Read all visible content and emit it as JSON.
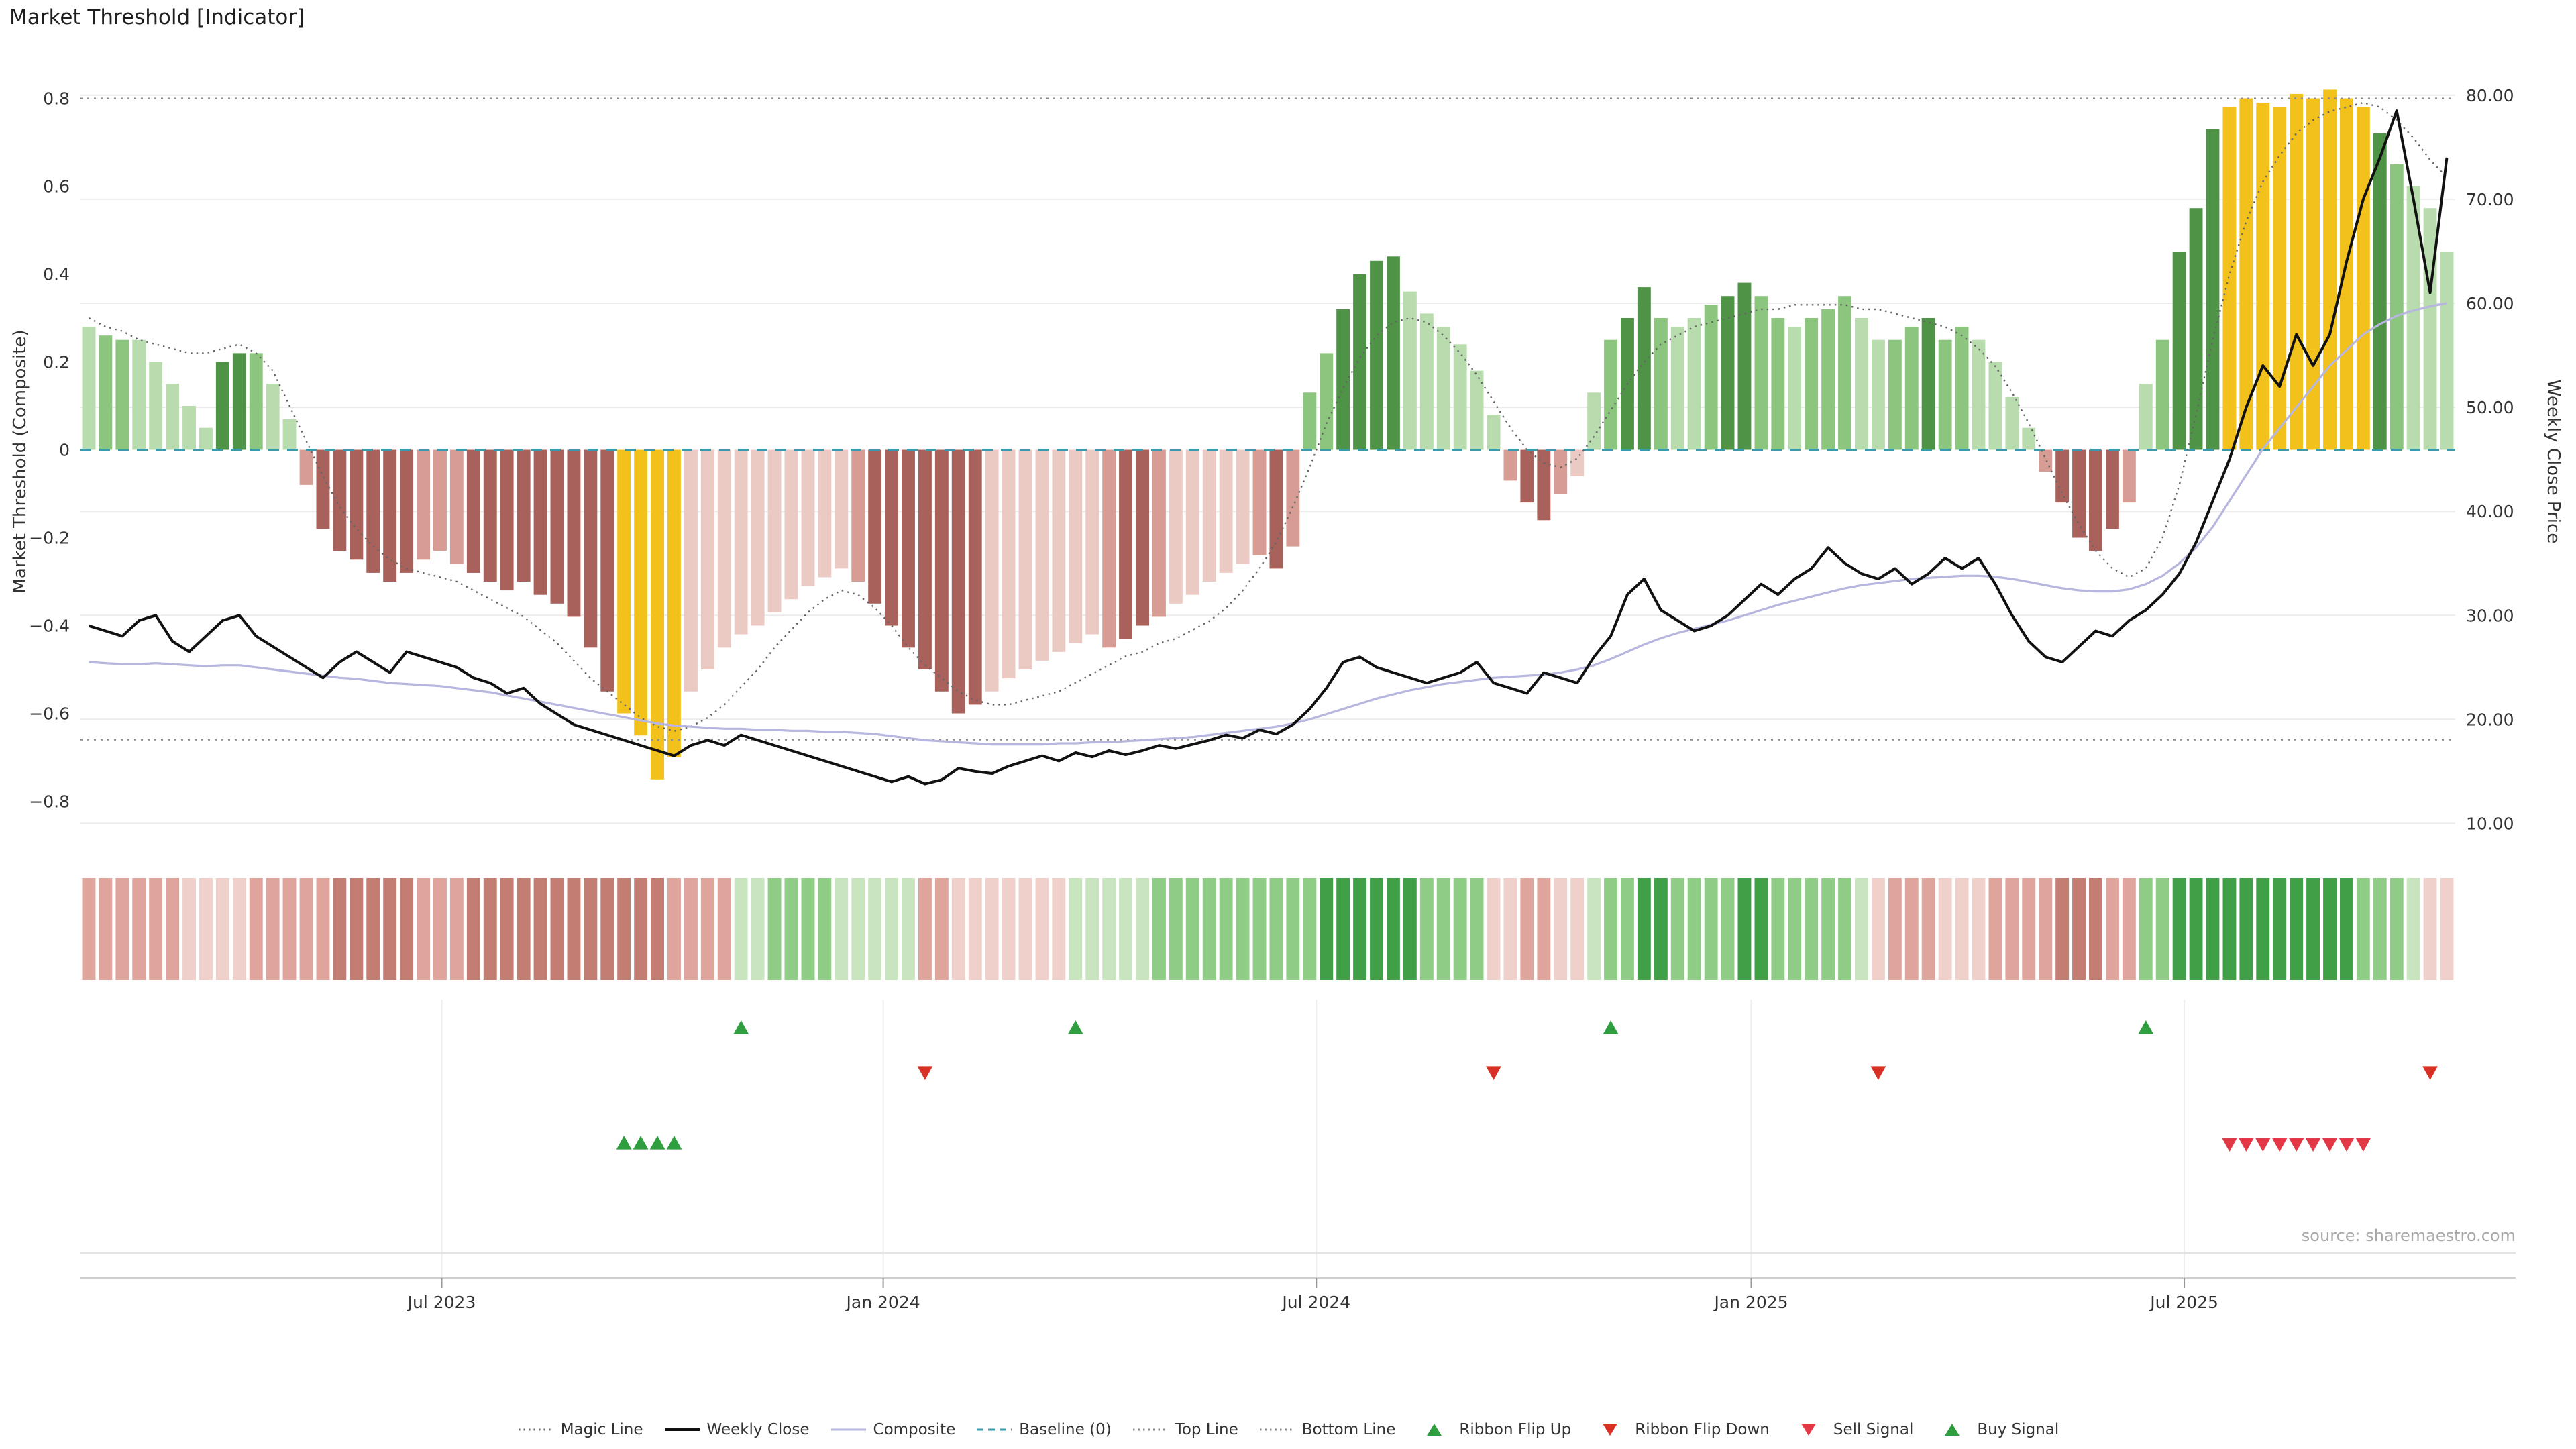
{
  "title": "Market Threshold [Indicator]",
  "source": "source: sharemaestro.com",
  "colors": {
    "bar_green_light": "#b8dcae",
    "bar_green_mid": "#8cc57e",
    "bar_green_dark": "#4f9347",
    "bar_red_light": "#eccac4",
    "bar_red_mid": "#d79d94",
    "bar_red_dark": "#a8625b",
    "bar_gold": "#f3c11b",
    "ribbon_green_light": "#c9e5c0",
    "ribbon_green_mid": "#8fcc85",
    "ribbon_green_dark": "#3fa047",
    "ribbon_red_light": "#f0d0ca",
    "ribbon_red_mid": "#dfa49b",
    "ribbon_red_dark": "#c47d72",
    "weekly_close": "#111111",
    "composite": "#b6b6de",
    "magic": "#666666",
    "baseline": "#3a9aaa",
    "guide": "#888888",
    "grid": "#ececec",
    "flip_up": "#2e9e3e",
    "flip_down": "#d93025",
    "sell": "#e33845",
    "buy": "#2e9e3e",
    "axis_text": "#333333",
    "source_text": "#a8a8a8"
  },
  "legend": {
    "items": [
      {
        "label": "Magic Line",
        "marker": "dotted",
        "color": "#666666",
        "width": 3
      },
      {
        "label": "Weekly Close",
        "marker": "line",
        "color": "#111111",
        "width": 4
      },
      {
        "label": "Composite",
        "marker": "line",
        "color": "#b6b6de",
        "width": 3
      },
      {
        "label": "Baseline (0)",
        "marker": "dashed",
        "color": "#3a9aaa",
        "width": 3
      },
      {
        "label": "Top Line",
        "marker": "dotted",
        "color": "#888888",
        "width": 3
      },
      {
        "label": "Bottom Line",
        "marker": "dotted",
        "color": "#888888",
        "width": 3
      },
      {
        "label": "Ribbon Flip Up",
        "marker": "triangle-up",
        "color": "#2e9e3e"
      },
      {
        "label": "Ribbon Flip Down",
        "marker": "triangle-down",
        "color": "#d93025"
      },
      {
        "label": "Sell Signal",
        "marker": "triangle-down",
        "color": "#e33845"
      },
      {
        "label": "Buy Signal",
        "marker": "triangle-up",
        "color": "#2e9e3e"
      }
    ]
  },
  "chart_data": {
    "type": "mixed",
    "components": [
      "threshold_bars",
      "weekly_close_line",
      "composite_line",
      "magic_line",
      "momentum_ribbon",
      "signal_markers"
    ],
    "title": "Market Threshold [Indicator]",
    "n_weeks": 142,
    "x_axis": {
      "tick_labels": [
        "Jul 2023",
        "Jan 2024",
        "Jul 2024",
        "Jan 2025",
        "Jul 2025"
      ],
      "tick_weeks": [
        21.6,
        48.0,
        73.9,
        99.9,
        125.8
      ]
    },
    "left_axis": {
      "label": "Market Threshold (Composite)",
      "tick_labels": [
        "0.8",
        "0.6",
        "0.4",
        "0.2",
        "0",
        "−0.2",
        "−0.4",
        "−0.6",
        "−0.8"
      ],
      "tick_values": [
        0.8,
        0.6,
        0.4,
        0.2,
        0,
        -0.2,
        -0.4,
        -0.6,
        -0.8
      ],
      "range": [
        -0.9,
        0.845
      ]
    },
    "right_axis": {
      "label": "Weekly Close Price",
      "tick_labels": [
        "80.00",
        "70.00",
        "60.00",
        "50.00",
        "40.00",
        "30.00",
        "20.00",
        "10.00"
      ],
      "tick_values": [
        80,
        70,
        60,
        50,
        40,
        30,
        20,
        10
      ],
      "range": [
        7.9,
        81.6
      ]
    },
    "guides": {
      "top_line": 0.8,
      "bottom_line": -0.66,
      "baseline": 0
    },
    "threshold": {
      "values": [
        0.28,
        0.26,
        0.25,
        0.25,
        0.2,
        0.15,
        0.1,
        0.05,
        0.2,
        0.22,
        0.22,
        0.15,
        0.07,
        -0.08,
        -0.18,
        -0.23,
        -0.25,
        -0.28,
        -0.3,
        -0.28,
        -0.25,
        -0.23,
        -0.26,
        -0.28,
        -0.3,
        -0.32,
        -0.3,
        -0.33,
        -0.35,
        -0.38,
        -0.45,
        -0.55,
        -0.6,
        -0.65,
        -0.75,
        -0.7,
        -0.55,
        -0.5,
        -0.45,
        -0.42,
        -0.4,
        -0.37,
        -0.34,
        -0.31,
        -0.29,
        -0.27,
        -0.3,
        -0.35,
        -0.4,
        -0.45,
        -0.5,
        -0.55,
        -0.6,
        -0.58,
        -0.55,
        -0.52,
        -0.5,
        -0.48,
        -0.46,
        -0.44,
        -0.42,
        -0.45,
        -0.43,
        -0.4,
        -0.38,
        -0.35,
        -0.33,
        -0.3,
        -0.28,
        -0.26,
        -0.24,
        -0.27,
        -0.22,
        0.13,
        0.22,
        0.32,
        0.4,
        0.43,
        0.44,
        0.36,
        0.31,
        0.28,
        0.24,
        0.18,
        0.08,
        -0.07,
        -0.12,
        -0.16,
        -0.1,
        -0.06,
        0.13,
        0.25,
        0.3,
        0.37,
        0.3,
        0.28,
        0.3,
        0.33,
        0.35,
        0.38,
        0.35,
        0.3,
        0.28,
        0.3,
        0.32,
        0.35,
        0.3,
        0.25,
        0.25,
        0.28,
        0.3,
        0.25,
        0.28,
        0.25,
        0.2,
        0.12,
        0.05,
        -0.05,
        -0.12,
        -0.2,
        -0.23,
        -0.18,
        -0.12,
        0.15,
        0.25,
        0.45,
        0.55,
        0.73,
        0.78,
        0.8,
        0.79,
        0.78,
        0.81,
        0.8,
        0.82,
        0.8,
        0.78,
        0.72,
        0.65,
        0.6,
        0.55,
        0.45
      ],
      "colors": [
        "g1",
        "g2",
        "g2",
        "g1",
        "g1",
        "g1",
        "g1",
        "g1",
        "g3",
        "g3",
        "g2",
        "g1",
        "g1",
        "r2",
        "r3",
        "r3",
        "r3",
        "r3",
        "r3",
        "r3",
        "r2",
        "r2",
        "r2",
        "r3",
        "r3",
        "r3",
        "r3",
        "r3",
        "r3",
        "r3",
        "r3",
        "r3",
        "gold",
        "gold",
        "gold",
        "gold",
        "r1",
        "r1",
        "r1",
        "r1",
        "r1",
        "r1",
        "r1",
        "r1",
        "r1",
        "r1",
        "r2",
        "r3",
        "r3",
        "r3",
        "r3",
        "r3",
        "r3",
        "r3",
        "r1",
        "r1",
        "r1",
        "r1",
        "r1",
        "r1",
        "r1",
        "r2",
        "r3",
        "r3",
        "r2",
        "r1",
        "r1",
        "r1",
        "r1",
        "r1",
        "r2",
        "r3",
        "r2",
        "g2",
        "g2",
        "g3",
        "g3",
        "g3",
        "g3",
        "g1",
        "g1",
        "g1",
        "g1",
        "g1",
        "g1",
        "r2",
        "r3",
        "r3",
        "r2",
        "r1",
        "g1",
        "g2",
        "g3",
        "g3",
        "g2",
        "g1",
        "g1",
        "g2",
        "g3",
        "g3",
        "g2",
        "g2",
        "g1",
        "g2",
        "g2",
        "g2",
        "g1",
        "g1",
        "g2",
        "g2",
        "g3",
        "g2",
        "g2",
        "g1",
        "g1",
        "g1",
        "g1",
        "r2",
        "r3",
        "r3",
        "r3",
        "r3",
        "r2",
        "g1",
        "g2",
        "g3",
        "g3",
        "g3",
        "gold",
        "gold",
        "gold",
        "gold",
        "gold",
        "gold",
        "gold",
        "gold",
        "gold",
        "g3",
        "g2",
        "g1",
        "g1",
        "g1"
      ]
    },
    "weekly_close": [
      29,
      28.5,
      28,
      29.5,
      30,
      27.5,
      26.5,
      28,
      29.5,
      30,
      28,
      27,
      26,
      25,
      24,
      25.5,
      26.5,
      25.5,
      24.5,
      26.5,
      26,
      25.5,
      25,
      24,
      23.5,
      22.5,
      23,
      21.5,
      20.5,
      19.5,
      19,
      18.5,
      18,
      17.5,
      17,
      16.5,
      17.5,
      18,
      17.5,
      18.5,
      18,
      17.5,
      17,
      16.5,
      16,
      15.5,
      15,
      14.5,
      14,
      14.5,
      13.8,
      14.2,
      15.3,
      15,
      14.8,
      15.5,
      16,
      16.5,
      16,
      16.8,
      16.4,
      17,
      16.6,
      17,
      17.5,
      17.2,
      17.6,
      18,
      18.5,
      18.2,
      19,
      18.6,
      19.5,
      21,
      23,
      25.5,
      26,
      25,
      24.5,
      24,
      23.5,
      24,
      24.5,
      25.5,
      23.5,
      23,
      22.5,
      24.5,
      24,
      23.5,
      26,
      28,
      32,
      33.5,
      30.5,
      29.5,
      28.5,
      29,
      30,
      31.5,
      33,
      32,
      33.5,
      34.5,
      36.5,
      35,
      34,
      33.5,
      34.5,
      33,
      34,
      35.5,
      34.5,
      35.5,
      33,
      30,
      27.5,
      26,
      25.5,
      27,
      28.5,
      28,
      29.5,
      30.5,
      32,
      34,
      37,
      41,
      45,
      50,
      54,
      52,
      57,
      54,
      57,
      64,
      70,
      74,
      78.5,
      70,
      61,
      74
    ],
    "composite": [
      25.5,
      25.4,
      25.3,
      25.3,
      25.4,
      25.3,
      25.2,
      25.1,
      25.2,
      25.2,
      25.0,
      24.8,
      24.6,
      24.4,
      24.2,
      24.0,
      23.9,
      23.7,
      23.5,
      23.4,
      23.3,
      23.2,
      23.0,
      22.8,
      22.6,
      22.3,
      22.0,
      21.7,
      21.4,
      21.1,
      20.8,
      20.5,
      20.2,
      19.9,
      19.6,
      19.4,
      19.3,
      19.2,
      19.1,
      19.1,
      19.0,
      19.0,
      18.9,
      18.9,
      18.8,
      18.8,
      18.7,
      18.6,
      18.4,
      18.2,
      18.0,
      17.9,
      17.8,
      17.7,
      17.6,
      17.6,
      17.6,
      17.6,
      17.7,
      17.7,
      17.8,
      17.8,
      17.9,
      18.0,
      18.1,
      18.2,
      18.3,
      18.5,
      18.7,
      18.9,
      19.1,
      19.3,
      19.6,
      20.0,
      20.5,
      21.0,
      21.5,
      22.0,
      22.4,
      22.8,
      23.1,
      23.4,
      23.6,
      23.8,
      24.0,
      24.1,
      24.2,
      24.3,
      24.5,
      24.8,
      25.2,
      25.8,
      26.5,
      27.2,
      27.8,
      28.3,
      28.7,
      29.1,
      29.5,
      30.0,
      30.5,
      31.0,
      31.4,
      31.8,
      32.2,
      32.6,
      32.9,
      33.1,
      33.3,
      33.5,
      33.6,
      33.7,
      33.8,
      33.8,
      33.7,
      33.5,
      33.2,
      32.9,
      32.6,
      32.4,
      32.3,
      32.3,
      32.5,
      33.0,
      33.8,
      35.0,
      36.5,
      38.5,
      41.0,
      43.5,
      46.0,
      48.0,
      50.0,
      52.0,
      54.0,
      55.5,
      57.0,
      58.0,
      58.8,
      59.3,
      59.7,
      60.0
    ],
    "magic_line": [
      0.3,
      0.28,
      0.27,
      0.25,
      0.24,
      0.23,
      0.22,
      0.22,
      0.23,
      0.24,
      0.22,
      0.18,
      0.1,
      0.02,
      -0.06,
      -0.13,
      -0.18,
      -0.22,
      -0.25,
      -0.27,
      -0.28,
      -0.29,
      -0.3,
      -0.32,
      -0.34,
      -0.36,
      -0.38,
      -0.41,
      -0.44,
      -0.48,
      -0.52,
      -0.55,
      -0.58,
      -0.61,
      -0.63,
      -0.64,
      -0.63,
      -0.61,
      -0.58,
      -0.54,
      -0.5,
      -0.45,
      -0.41,
      -0.37,
      -0.34,
      -0.32,
      -0.33,
      -0.36,
      -0.4,
      -0.45,
      -0.49,
      -0.52,
      -0.55,
      -0.57,
      -0.58,
      -0.58,
      -0.57,
      -0.56,
      -0.55,
      -0.53,
      -0.51,
      -0.49,
      -0.47,
      -0.46,
      -0.44,
      -0.43,
      -0.41,
      -0.39,
      -0.36,
      -0.32,
      -0.27,
      -0.21,
      -0.13,
      -0.04,
      0.06,
      0.14,
      0.21,
      0.26,
      0.29,
      0.3,
      0.29,
      0.26,
      0.22,
      0.17,
      0.11,
      0.05,
      0.0,
      -0.03,
      -0.04,
      -0.02,
      0.03,
      0.09,
      0.15,
      0.2,
      0.24,
      0.26,
      0.28,
      0.29,
      0.3,
      0.31,
      0.32,
      0.32,
      0.33,
      0.33,
      0.33,
      0.33,
      0.32,
      0.32,
      0.31,
      0.3,
      0.29,
      0.28,
      0.26,
      0.23,
      0.19,
      0.13,
      0.06,
      -0.02,
      -0.1,
      -0.17,
      -0.23,
      -0.27,
      -0.29,
      -0.27,
      -0.2,
      -0.08,
      0.08,
      0.25,
      0.4,
      0.52,
      0.61,
      0.67,
      0.72,
      0.75,
      0.77,
      0.78,
      0.79,
      0.78,
      0.75,
      0.71,
      0.66,
      0.62
    ],
    "ribbon": [
      "r2",
      "r2",
      "r2",
      "r2",
      "r2",
      "r2",
      "r1",
      "r1",
      "r1",
      "r1",
      "r2",
      "r2",
      "r2",
      "r2",
      "r2",
      "r3",
      "r3",
      "r3",
      "r3",
      "r3",
      "r2",
      "r2",
      "r2",
      "r3",
      "r3",
      "r3",
      "r3",
      "r3",
      "r3",
      "r3",
      "r3",
      "r3",
      "r3",
      "r3",
      "r3",
      "r2",
      "r2",
      "r2",
      "r2",
      "g1",
      "g1",
      "g2",
      "g2",
      "g2",
      "g2",
      "g1",
      "g1",
      "g1",
      "g1",
      "g1",
      "r2",
      "r2",
      "r1",
      "r1",
      "r1",
      "r1",
      "r1",
      "r1",
      "r1",
      "g1",
      "g1",
      "g1",
      "g1",
      "g1",
      "g2",
      "g2",
      "g2",
      "g2",
      "g2",
      "g2",
      "g2",
      "g2",
      "g2",
      "g2",
      "g3",
      "g3",
      "g3",
      "g3",
      "g3",
      "g3",
      "g2",
      "g2",
      "g2",
      "g2",
      "r1",
      "r1",
      "r2",
      "r2",
      "r1",
      "r1",
      "g1",
      "g2",
      "g2",
      "g3",
      "g3",
      "g2",
      "g2",
      "g2",
      "g2",
      "g3",
      "g3",
      "g2",
      "g2",
      "g2",
      "g2",
      "g2",
      "g1",
      "r1",
      "r2",
      "r2",
      "r2",
      "r1",
      "r1",
      "r1",
      "r2",
      "r2",
      "r2",
      "r2",
      "r3",
      "r3",
      "r3",
      "r2",
      "r2",
      "g2",
      "g2",
      "g3",
      "g3",
      "g3",
      "g3",
      "g3",
      "g3",
      "g3",
      "g3",
      "g3",
      "g3",
      "g3",
      "g2",
      "g2",
      "g2",
      "g1",
      "r1",
      "r1"
    ],
    "signals": {
      "ribbon_flip_up_weeks": [
        39,
        59,
        91,
        123
      ],
      "ribbon_flip_down_weeks": [
        50,
        84,
        107,
        140
      ],
      "buy_weeks": [
        32,
        33,
        34,
        35
      ],
      "sell_weeks": [
        128,
        129,
        130,
        131,
        132,
        133,
        134,
        135,
        136
      ]
    }
  }
}
